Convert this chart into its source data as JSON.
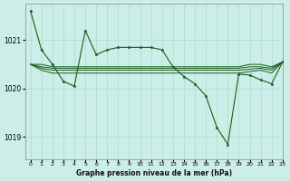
{
  "title": "Graphe pression niveau de la mer (hPa)",
  "background_color": "#cceee8",
  "grid_color": "#aaddcc",
  "line_color": "#1a5c1a",
  "marker_color": "#1a5c1a",
  "xlim": [
    -0.5,
    23
  ],
  "ylim": [
    1018.55,
    1021.75
  ],
  "yticks": [
    1019,
    1020,
    1021
  ],
  "xticks": [
    0,
    1,
    2,
    3,
    4,
    5,
    6,
    7,
    8,
    9,
    10,
    11,
    12,
    13,
    14,
    15,
    16,
    17,
    18,
    19,
    20,
    21,
    22,
    23
  ],
  "series": {
    "main": [
      1021.6,
      1020.8,
      1020.5,
      1020.15,
      1020.05,
      1021.2,
      1020.7,
      1020.8,
      1020.85,
      1020.85,
      1020.85,
      1020.85,
      1020.8,
      1020.45,
      1020.25,
      1020.1,
      1019.85,
      1019.2,
      1018.85,
      1020.3,
      1020.28,
      1020.18,
      1020.1,
      1020.55
    ],
    "s2": [
      1020.5,
      1020.5,
      1020.45,
      1020.45,
      1020.45,
      1020.45,
      1020.45,
      1020.45,
      1020.45,
      1020.45,
      1020.45,
      1020.45,
      1020.45,
      1020.45,
      1020.45,
      1020.45,
      1020.45,
      1020.45,
      1020.45,
      1020.45,
      1020.5,
      1020.5,
      1020.45,
      1020.55
    ],
    "s3": [
      1020.5,
      1020.45,
      1020.42,
      1020.42,
      1020.42,
      1020.42,
      1020.42,
      1020.42,
      1020.42,
      1020.42,
      1020.42,
      1020.42,
      1020.42,
      1020.42,
      1020.42,
      1020.42,
      1020.42,
      1020.42,
      1020.42,
      1020.42,
      1020.45,
      1020.45,
      1020.42,
      1020.55
    ],
    "s4": [
      1020.5,
      1020.42,
      1020.38,
      1020.38,
      1020.38,
      1020.38,
      1020.38,
      1020.38,
      1020.38,
      1020.38,
      1020.38,
      1020.38,
      1020.38,
      1020.38,
      1020.38,
      1020.38,
      1020.38,
      1020.38,
      1020.38,
      1020.38,
      1020.4,
      1020.42,
      1020.38,
      1020.55
    ],
    "s5": [
      1020.5,
      1020.38,
      1020.32,
      1020.32,
      1020.32,
      1020.32,
      1020.32,
      1020.32,
      1020.32,
      1020.32,
      1020.32,
      1020.32,
      1020.32,
      1020.32,
      1020.32,
      1020.32,
      1020.32,
      1020.32,
      1020.32,
      1020.32,
      1020.35,
      1020.38,
      1020.32,
      1020.55
    ]
  }
}
